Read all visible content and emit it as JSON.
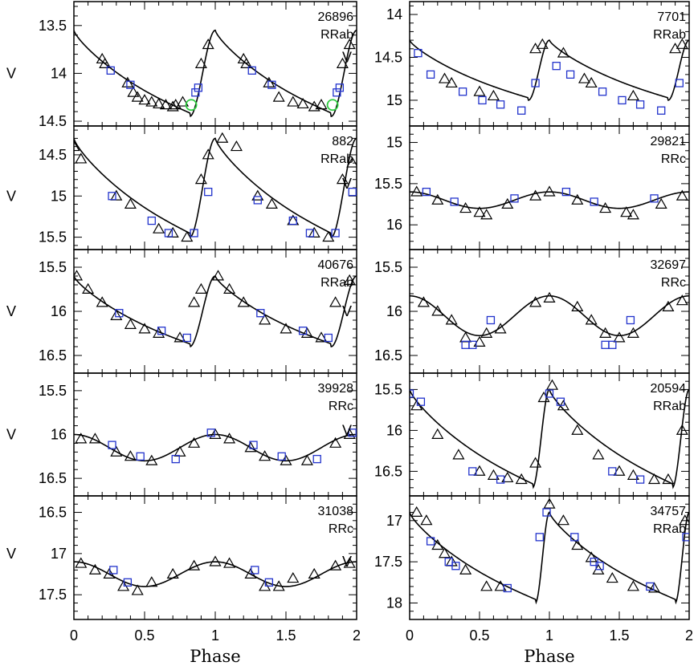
{
  "figure": {
    "xlabel": "Phase",
    "ylabel_marker": "V",
    "colors": {
      "triangle": "#000000",
      "square": "#2233cc",
      "circle": "#2ecc40",
      "curve": "#000000"
    }
  },
  "chart_data": [
    {
      "type": "scatter",
      "id": "26896",
      "type_label": "RRab",
      "col": 0,
      "row": 0,
      "ylim": [
        13.25,
        14.55
      ],
      "yticks": [
        13.5,
        14,
        14.5
      ],
      "ytick_labels": [
        "13.5",
        "14",
        "14.5"
      ],
      "xticks": [
        0,
        0.5,
        1,
        1.5,
        2
      ],
      "xtick_labels": [
        "0",
        "0.5",
        "1",
        "1.5",
        "2"
      ],
      "shape": "rrab",
      "mean": 14.0,
      "amp": 0.9,
      "pmin": 0.82,
      "triangles": [
        [
          0.2,
          13.85
        ],
        [
          0.22,
          13.9
        ],
        [
          0.38,
          14.1
        ],
        [
          0.42,
          14.2
        ],
        [
          0.45,
          14.25
        ],
        [
          0.5,
          14.28
        ],
        [
          0.55,
          14.3
        ],
        [
          0.6,
          14.32
        ],
        [
          0.65,
          14.33
        ],
        [
          0.7,
          14.35
        ],
        [
          0.72,
          14.33
        ],
        [
          0.77,
          14.3
        ],
        [
          0.9,
          13.9
        ],
        [
          0.95,
          13.7
        ],
        [
          1.2,
          13.85
        ],
        [
          1.22,
          13.9
        ],
        [
          1.38,
          14.1
        ],
        [
          1.45,
          14.25
        ],
        [
          1.55,
          14.3
        ],
        [
          1.62,
          14.32
        ],
        [
          1.7,
          14.35
        ],
        [
          1.75,
          14.33
        ],
        [
          1.9,
          13.9
        ],
        [
          1.95,
          13.7
        ]
      ],
      "squares": [
        [
          0.26,
          13.97
        ],
        [
          0.4,
          14.12
        ],
        [
          0.86,
          14.2
        ],
        [
          0.88,
          14.15
        ],
        [
          1.26,
          13.97
        ],
        [
          1.4,
          14.12
        ],
        [
          1.86,
          14.2
        ],
        [
          1.88,
          14.15
        ]
      ],
      "circles": [
        [
          0.83,
          14.33
        ],
        [
          1.83,
          14.33
        ]
      ]
    },
    {
      "type": "scatter",
      "id": "7701",
      "type_label": "RRab",
      "col": 1,
      "row": 0,
      "ylim": [
        13.85,
        15.3
      ],
      "yticks": [
        14,
        14.5,
        15
      ],
      "ytick_labels": [
        "14",
        "14.5",
        "15"
      ],
      "xticks": [
        0,
        0.5,
        1,
        1.5,
        2
      ],
      "xtick_labels": [
        "0",
        "0.5",
        "1",
        "1.5",
        "2"
      ],
      "shape": "rrab",
      "mean": 14.65,
      "amp": 0.7,
      "pmin": 0.85,
      "triangles": [
        [
          0.25,
          14.75
        ],
        [
          0.3,
          14.8
        ],
        [
          0.5,
          14.9
        ],
        [
          0.6,
          14.95
        ],
        [
          0.9,
          14.4
        ],
        [
          0.95,
          14.35
        ],
        [
          1.1,
          14.45
        ],
        [
          1.25,
          14.75
        ],
        [
          1.3,
          14.8
        ],
        [
          1.6,
          14.95
        ],
        [
          1.9,
          14.4
        ],
        [
          1.95,
          14.35
        ]
      ],
      "squares": [
        [
          0.06,
          14.45
        ],
        [
          0.15,
          14.7
        ],
        [
          0.38,
          14.9
        ],
        [
          0.52,
          15.0
        ],
        [
          0.65,
          15.05
        ],
        [
          0.8,
          15.12
        ],
        [
          0.9,
          14.8
        ],
        [
          1.05,
          14.6
        ],
        [
          1.15,
          14.7
        ],
        [
          1.38,
          14.9
        ],
        [
          1.52,
          15.0
        ],
        [
          1.65,
          15.05
        ],
        [
          1.8,
          15.12
        ],
        [
          1.93,
          14.8
        ]
      ],
      "circles": []
    },
    {
      "type": "scatter",
      "id": "882",
      "type_label": "RRab",
      "col": 0,
      "row": 1,
      "ylim": [
        14.15,
        15.65
      ],
      "yticks": [
        14.5,
        15,
        15.5
      ],
      "ytick_labels": [
        "14.5",
        "15",
        "15.5"
      ],
      "xticks": [
        0,
        0.5,
        1,
        1.5,
        2
      ],
      "xtick_labels": [
        "0",
        "0.5",
        "1",
        "1.5",
        "2"
      ],
      "shape": "rrab",
      "mean": 14.9,
      "amp": 1.2,
      "pmin": 0.82,
      "triangles": [
        [
          0.0,
          14.4
        ],
        [
          0.05,
          14.55
        ],
        [
          0.3,
          15.0
        ],
        [
          0.4,
          15.1
        ],
        [
          0.6,
          15.4
        ],
        [
          0.7,
          15.45
        ],
        [
          0.8,
          15.5
        ],
        [
          0.9,
          14.8
        ],
        [
          0.95,
          14.5
        ],
        [
          1.05,
          14.3
        ],
        [
          1.15,
          14.4
        ],
        [
          1.3,
          15.0
        ],
        [
          1.4,
          15.1
        ],
        [
          1.55,
          15.3
        ],
        [
          1.7,
          15.45
        ],
        [
          1.8,
          15.5
        ],
        [
          1.9,
          14.8
        ],
        [
          1.97,
          14.6
        ]
      ],
      "squares": [
        [
          0.27,
          15.0
        ],
        [
          0.55,
          15.3
        ],
        [
          0.67,
          15.45
        ],
        [
          0.85,
          15.45
        ],
        [
          0.95,
          14.95
        ],
        [
          1.3,
          15.05
        ],
        [
          1.55,
          15.3
        ],
        [
          1.67,
          15.45
        ],
        [
          1.85,
          15.45
        ],
        [
          1.97,
          14.95
        ]
      ],
      "circles": []
    },
    {
      "type": "scatter",
      "id": "29821",
      "type_label": "RRc",
      "col": 1,
      "row": 1,
      "ylim": [
        14.8,
        16.3
      ],
      "yticks": [
        15,
        15.5,
        16
      ],
      "ytick_labels": [
        "15",
        "15.5",
        "16"
      ],
      "xticks": [
        0,
        0.5,
        1,
        1.5,
        2
      ],
      "xtick_labels": [
        "0",
        "0.5",
        "1",
        "1.5",
        "2"
      ],
      "shape": "rrc",
      "mean": 15.7,
      "amp": 0.2,
      "pmin": 0.5,
      "triangles": [
        [
          0.05,
          15.6
        ],
        [
          0.2,
          15.7
        ],
        [
          0.4,
          15.8
        ],
        [
          0.5,
          15.85
        ],
        [
          0.55,
          15.88
        ],
        [
          0.7,
          15.75
        ],
        [
          0.9,
          15.65
        ],
        [
          1.0,
          15.6
        ],
        [
          1.2,
          15.7
        ],
        [
          1.4,
          15.8
        ],
        [
          1.55,
          15.85
        ],
        [
          1.6,
          15.88
        ],
        [
          1.8,
          15.75
        ],
        [
          1.95,
          15.65
        ]
      ],
      "squares": [
        [
          0.12,
          15.6
        ],
        [
          0.32,
          15.72
        ],
        [
          0.75,
          15.68
        ],
        [
          1.12,
          15.6
        ],
        [
          1.32,
          15.72
        ],
        [
          1.75,
          15.68
        ]
      ],
      "circles": []
    },
    {
      "type": "scatter",
      "id": "40676",
      "type_label": "RRab",
      "col": 0,
      "row": 2,
      "ylim": [
        15.3,
        16.7
      ],
      "yticks": [
        15.5,
        16,
        16.5
      ],
      "ytick_labels": [
        "15.5",
        "16",
        "16.5"
      ],
      "xticks": [
        0,
        0.5,
        1,
        1.5,
        2
      ],
      "xtick_labels": [
        "0",
        "0.5",
        "1",
        "1.5",
        "2"
      ],
      "shape": "rrab",
      "mean": 16.0,
      "amp": 0.8,
      "pmin": 0.82,
      "triangles": [
        [
          0.02,
          15.6
        ],
        [
          0.1,
          15.75
        ],
        [
          0.2,
          15.9
        ],
        [
          0.3,
          16.05
        ],
        [
          0.4,
          16.15
        ],
        [
          0.5,
          16.2
        ],
        [
          0.6,
          16.25
        ],
        [
          0.75,
          16.3
        ],
        [
          0.85,
          15.9
        ],
        [
          0.9,
          15.75
        ],
        [
          1.02,
          15.6
        ],
        [
          1.1,
          15.75
        ],
        [
          1.2,
          15.9
        ],
        [
          1.35,
          16.1
        ],
        [
          1.5,
          16.2
        ],
        [
          1.65,
          16.25
        ],
        [
          1.75,
          16.3
        ],
        [
          1.85,
          15.9
        ],
        [
          1.95,
          15.65
        ]
      ],
      "squares": [
        [
          0.32,
          16.02
        ],
        [
          0.62,
          16.22
        ],
        [
          0.8,
          16.3
        ],
        [
          1.32,
          16.02
        ],
        [
          1.62,
          16.22
        ],
        [
          1.8,
          16.3
        ]
      ],
      "circles": []
    },
    {
      "type": "scatter",
      "id": "32697",
      "type_label": "RRc",
      "col": 1,
      "row": 2,
      "ylim": [
        15.3,
        16.7
      ],
      "yticks": [
        15.5,
        16,
        16.5
      ],
      "ytick_labels": [
        "15.5",
        "16",
        "16.5"
      ],
      "xticks": [
        0,
        0.5,
        1,
        1.5,
        2
      ],
      "xtick_labels": [
        "0",
        "0.5",
        "1",
        "1.5",
        "2"
      ],
      "shape": "rrc",
      "mean": 16.05,
      "amp": 0.45,
      "pmin": 0.5,
      "triangles": [
        [
          0.1,
          15.9
        ],
        [
          0.2,
          16.0
        ],
        [
          0.3,
          16.1
        ],
        [
          0.4,
          16.3
        ],
        [
          0.5,
          16.35
        ],
        [
          0.55,
          16.25
        ],
        [
          0.65,
          16.2
        ],
        [
          0.9,
          15.9
        ],
        [
          1.0,
          15.85
        ],
        [
          1.2,
          15.95
        ],
        [
          1.3,
          16.1
        ],
        [
          1.4,
          16.25
        ],
        [
          1.5,
          16.3
        ],
        [
          1.6,
          16.25
        ],
        [
          1.85,
          15.95
        ],
        [
          1.95,
          15.88
        ]
      ],
      "squares": [
        [
          0.4,
          16.38
        ],
        [
          0.45,
          16.38
        ],
        [
          0.58,
          16.1
        ],
        [
          1.4,
          16.38
        ],
        [
          1.45,
          16.38
        ],
        [
          1.58,
          16.1
        ]
      ],
      "circles": []
    },
    {
      "type": "scatter",
      "id": "39928",
      "type_label": "RRc",
      "col": 0,
      "row": 3,
      "ylim": [
        15.3,
        16.7
      ],
      "yticks": [
        15.5,
        16,
        16.5
      ],
      "ytick_labels": [
        "15.5",
        "16",
        "16.5"
      ],
      "xticks": [
        0,
        0.5,
        1,
        1.5,
        2
      ],
      "xtick_labels": [
        "0",
        "0.5",
        "1",
        "1.5",
        "2"
      ],
      "shape": "rrc",
      "mean": 16.15,
      "amp": 0.3,
      "pmin": 0.5,
      "triangles": [
        [
          0.05,
          16.05
        ],
        [
          0.15,
          16.05
        ],
        [
          0.3,
          16.2
        ],
        [
          0.4,
          16.25
        ],
        [
          0.55,
          16.3
        ],
        [
          0.75,
          16.2
        ],
        [
          0.85,
          16.1
        ],
        [
          1.0,
          16.0
        ],
        [
          1.1,
          16.05
        ],
        [
          1.25,
          16.15
        ],
        [
          1.35,
          16.25
        ],
        [
          1.5,
          16.3
        ],
        [
          1.65,
          16.3
        ],
        [
          1.85,
          16.1
        ],
        [
          1.95,
          16.0
        ]
      ],
      "squares": [
        [
          0.27,
          16.12
        ],
        [
          0.47,
          16.25
        ],
        [
          0.72,
          16.28
        ],
        [
          0.97,
          15.98
        ],
        [
          1.27,
          16.12
        ],
        [
          1.47,
          16.25
        ],
        [
          1.72,
          16.28
        ],
        [
          1.97,
          15.98
        ]
      ],
      "circles": []
    },
    {
      "type": "scatter",
      "id": "20594",
      "type_label": "RRab",
      "col": 1,
      "row": 3,
      "ylim": [
        15.3,
        16.8
      ],
      "yticks": [
        15.5,
        16,
        16.5
      ],
      "ytick_labels": [
        "15.5",
        "16",
        "16.5"
      ],
      "xticks": [
        0,
        0.5,
        1,
        1.5,
        2
      ],
      "xtick_labels": [
        "0",
        "0.5",
        "1",
        "1.5",
        "2"
      ],
      "shape": "rrab",
      "mean": 16.1,
      "amp": 1.2,
      "pmin": 0.88,
      "triangles": [
        [
          0.05,
          15.7
        ],
        [
          0.2,
          16.05
        ],
        [
          0.35,
          16.3
        ],
        [
          0.5,
          16.5
        ],
        [
          0.6,
          16.55
        ],
        [
          0.7,
          16.58
        ],
        [
          0.8,
          16.6
        ],
        [
          0.9,
          16.4
        ],
        [
          0.96,
          15.6
        ],
        [
          1.02,
          15.45
        ],
        [
          1.1,
          15.7
        ],
        [
          1.2,
          16.0
        ],
        [
          1.35,
          16.3
        ],
        [
          1.5,
          16.5
        ],
        [
          1.6,
          16.55
        ],
        [
          1.75,
          16.6
        ],
        [
          1.85,
          16.6
        ],
        [
          1.95,
          16.0
        ]
      ],
      "squares": [
        [
          0.0,
          15.55
        ],
        [
          0.08,
          15.65
        ],
        [
          0.45,
          16.5
        ],
        [
          0.65,
          16.6
        ],
        [
          1.0,
          15.55
        ],
        [
          1.08,
          15.65
        ],
        [
          1.45,
          16.5
        ],
        [
          1.65,
          16.6
        ]
      ],
      "circles": []
    },
    {
      "type": "scatter",
      "id": "31038",
      "type_label": "RRc",
      "col": 0,
      "row": 4,
      "ylim": [
        16.3,
        17.8
      ],
      "yticks": [
        16.5,
        17,
        17.5
      ],
      "ytick_labels": [
        "16.5",
        "17",
        "17.5"
      ],
      "xticks": [
        0,
        0.5,
        1,
        1.5,
        2
      ],
      "xtick_labels": [
        "0",
        "0.5",
        "1",
        "1.5",
        "2"
      ],
      "shape": "rrc",
      "mean": 17.25,
      "amp": 0.3,
      "pmin": 0.55,
      "triangles": [
        [
          0.05,
          17.12
        ],
        [
          0.15,
          17.2
        ],
        [
          0.25,
          17.25
        ],
        [
          0.35,
          17.4
        ],
        [
          0.45,
          17.45
        ],
        [
          0.55,
          17.35
        ],
        [
          0.7,
          17.25
        ],
        [
          0.85,
          17.15
        ],
        [
          1.0,
          17.1
        ],
        [
          1.1,
          17.12
        ],
        [
          1.25,
          17.25
        ],
        [
          1.35,
          17.4
        ],
        [
          1.45,
          17.4
        ],
        [
          1.55,
          17.3
        ],
        [
          1.7,
          17.25
        ],
        [
          1.85,
          17.15
        ],
        [
          1.95,
          17.12
        ]
      ],
      "squares": [
        [
          0.28,
          17.2
        ],
        [
          0.38,
          17.35
        ],
        [
          1.28,
          17.2
        ],
        [
          1.38,
          17.35
        ]
      ],
      "circles": []
    },
    {
      "type": "scatter",
      "id": "34757",
      "type_label": "RRab",
      "col": 1,
      "row": 4,
      "ylim": [
        16.7,
        18.2
      ],
      "yticks": [
        17,
        17.5,
        18
      ],
      "ytick_labels": [
        "17",
        "17.5",
        "18"
      ],
      "xticks": [
        0,
        0.5,
        1,
        1.5,
        2
      ],
      "xtick_labels": [
        "0",
        "0.5",
        "1",
        "1.5",
        "2"
      ],
      "shape": "rrab",
      "mean": 17.45,
      "amp": 1.1,
      "pmin": 0.9,
      "triangles": [
        [
          0.05,
          16.9
        ],
        [
          0.12,
          17.0
        ],
        [
          0.2,
          17.3
        ],
        [
          0.25,
          17.4
        ],
        [
          0.3,
          17.5
        ],
        [
          0.4,
          17.6
        ],
        [
          0.55,
          17.8
        ],
        [
          0.65,
          17.8
        ],
        [
          1.0,
          16.8
        ],
        [
          1.1,
          17.0
        ],
        [
          1.2,
          17.3
        ],
        [
          1.3,
          17.45
        ],
        [
          1.35,
          17.6
        ],
        [
          1.45,
          17.7
        ],
        [
          1.6,
          17.8
        ],
        [
          1.75,
          17.82
        ],
        [
          1.97,
          17.0
        ]
      ],
      "squares": [
        [
          0.15,
          17.25
        ],
        [
          0.28,
          17.5
        ],
        [
          0.33,
          17.55
        ],
        [
          0.7,
          17.82
        ],
        [
          0.93,
          17.2
        ],
        [
          0.98,
          16.9
        ],
        [
          1.18,
          17.2
        ],
        [
          1.32,
          17.5
        ],
        [
          1.36,
          17.55
        ],
        [
          1.72,
          17.8
        ],
        [
          1.98,
          17.2
        ]
      ],
      "circles": []
    }
  ]
}
